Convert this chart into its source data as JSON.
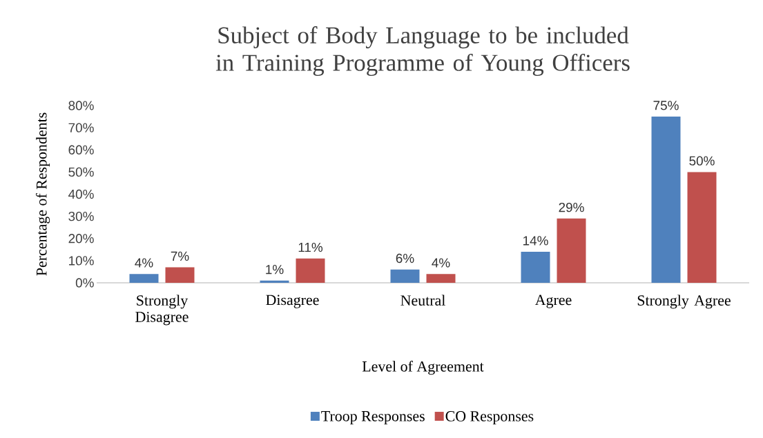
{
  "chart_data": {
    "type": "bar",
    "title": "Subject of Body Language to be included in Training Programme of Young Officers",
    "categories": [
      "Strongly Disagree",
      "Disagree",
      "Neutral",
      "Agree",
      "Strongly Agree"
    ],
    "xlabel": "Level of Agreement",
    "ylabel": "Percentage of Respondents",
    "series": [
      {
        "name": "Troop Responses",
        "color": "#4f81bd",
        "values": [
          4,
          1,
          6,
          14,
          75
        ],
        "value_labels": [
          "4%",
          "1%",
          "6%",
          "14%",
          "75%"
        ]
      },
      {
        "name": "CO Responses",
        "color": "#c0504d",
        "values": [
          7,
          11,
          4,
          29,
          50
        ],
        "value_labels": [
          "7%",
          "11%",
          "4%",
          "29%",
          "50%"
        ]
      }
    ],
    "ylim": [
      0,
      80
    ],
    "yticks": [
      {
        "value": 0,
        "label": "0%"
      },
      {
        "value": 10,
        "label": "10%"
      },
      {
        "value": 20,
        "label": "20%"
      },
      {
        "value": 30,
        "label": "30%"
      },
      {
        "value": 40,
        "label": "40%"
      },
      {
        "value": 50,
        "label": "50%"
      },
      {
        "value": 60,
        "label": "60%"
      },
      {
        "value": 70,
        "label": "70%"
      },
      {
        "value": 80,
        "label": "80%"
      }
    ],
    "grid": false,
    "legend": "bottom"
  }
}
